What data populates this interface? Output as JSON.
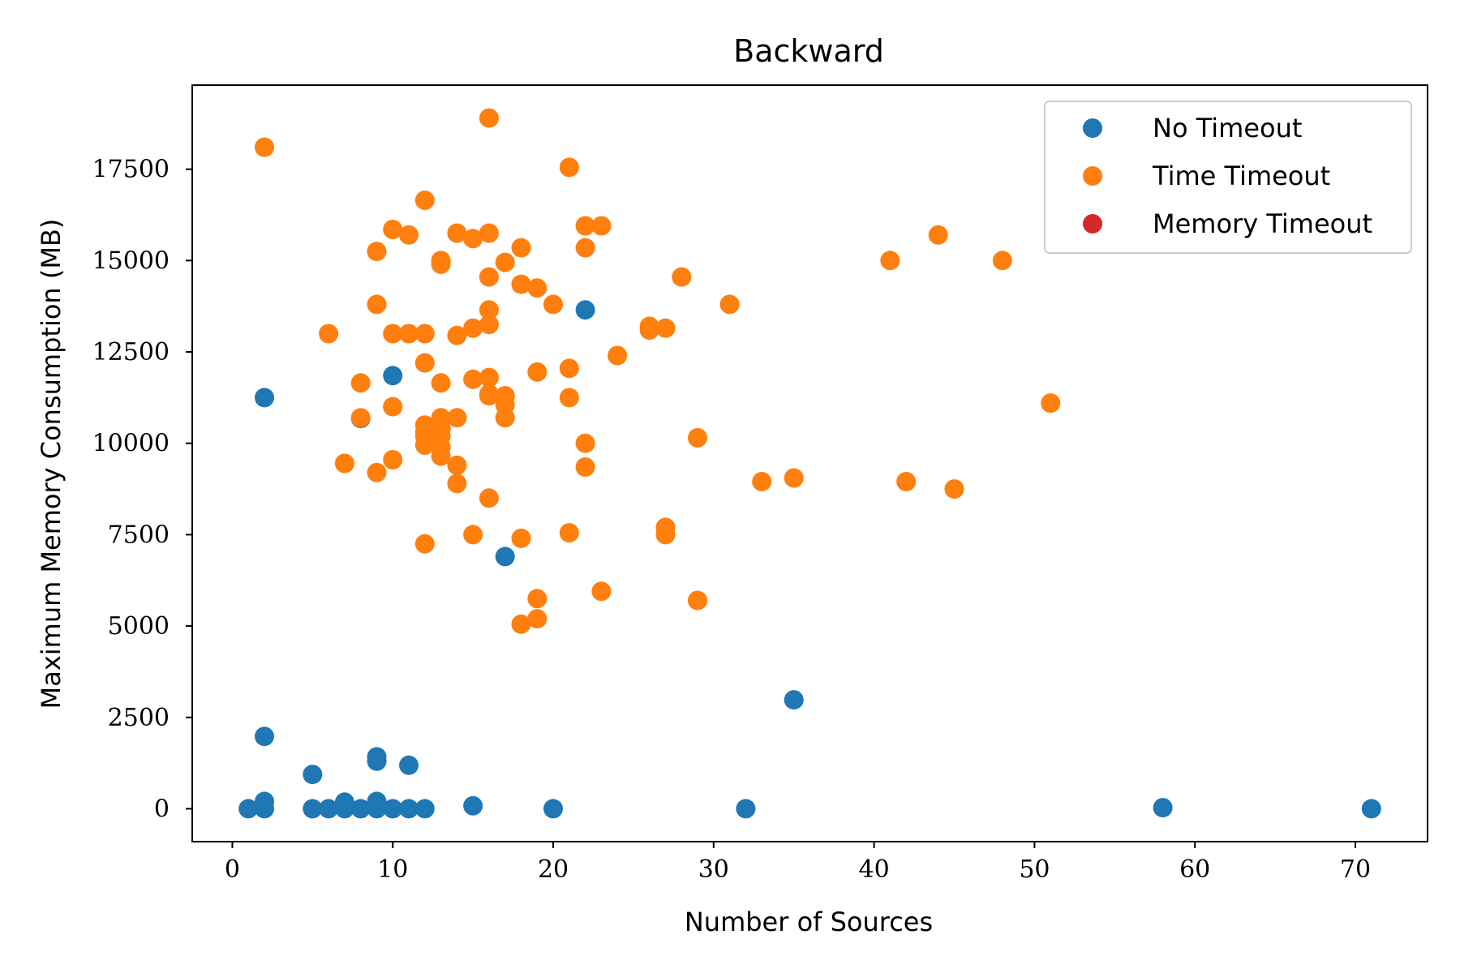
{
  "chart_data": {
    "type": "scatter",
    "title": "Backward",
    "xlabel": "Number of Sources",
    "ylabel": "Maximum Memory Consumption (MB)",
    "xlim": [
      -2.5,
      74.5
    ],
    "ylim": [
      -900,
      19800
    ],
    "xticks": [
      "0",
      "10",
      "20",
      "30",
      "40",
      "50",
      "60",
      "70"
    ],
    "yticks": [
      "0",
      "2500",
      "5000",
      "7500",
      "10000",
      "12500",
      "15000",
      "17500"
    ],
    "legend_position": "top-right",
    "grid": false,
    "series": [
      {
        "name": "No Timeout",
        "color": "#1f77b4",
        "x": [
          1,
          2,
          2,
          2,
          2,
          5,
          5,
          6,
          7,
          7,
          8,
          8,
          9,
          9,
          9,
          9,
          10,
          10,
          11,
          11,
          12,
          15,
          17,
          20,
          22,
          32,
          35,
          58,
          71
        ],
        "y": [
          0,
          0,
          200,
          1980,
          11250,
          0,
          940,
          0,
          0,
          180,
          0,
          10680,
          0,
          200,
          1300,
          1420,
          0,
          11850,
          0,
          1190,
          0,
          80,
          6900,
          0,
          13650,
          0,
          2980,
          30,
          0
        ]
      },
      {
        "name": "Time Timeout",
        "color": "#ff7f0e",
        "x": [
          2,
          6,
          7,
          8,
          8,
          9,
          9,
          9,
          10,
          10,
          10,
          10,
          11,
          11,
          12,
          12,
          12,
          12,
          12,
          12,
          12,
          12,
          13,
          13,
          13,
          13,
          13,
          13,
          13,
          13,
          14,
          14,
          14,
          14,
          14,
          15,
          15,
          15,
          15,
          16,
          16,
          16,
          16,
          16,
          16,
          16,
          16,
          16,
          17,
          17,
          17,
          17,
          18,
          18,
          18,
          18,
          19,
          19,
          19,
          19,
          20,
          21,
          21,
          21,
          21,
          22,
          22,
          22,
          22,
          23,
          23,
          24,
          26,
          26,
          27,
          27,
          27,
          28,
          29,
          29,
          31,
          33,
          35,
          41,
          42,
          44,
          45,
          48,
          51
        ],
        "y": [
          18100,
          13000,
          9450,
          10700,
          11650,
          9200,
          13800,
          15250,
          9550,
          11000,
          13000,
          15850,
          13000,
          15700,
          7250,
          9950,
          10200,
          10500,
          12200,
          13000,
          16650,
          10300,
          9650,
          9900,
          10200,
          10400,
          10700,
          11650,
          14900,
          15000,
          8900,
          9400,
          10700,
          12950,
          15750,
          7500,
          11750,
          13150,
          15600,
          8500,
          11300,
          11800,
          13250,
          13650,
          14550,
          15750,
          18900,
          11350,
          10700,
          11050,
          11300,
          14950,
          5050,
          7400,
          14350,
          15350,
          5200,
          5750,
          11950,
          14250,
          13800,
          7550,
          11250,
          12050,
          17550,
          9350,
          10000,
          15350,
          15950,
          5950,
          15950,
          12400,
          13100,
          13200,
          7500,
          7700,
          13150,
          14550,
          5700,
          10150,
          13800,
          8950,
          9050,
          15000,
          8950,
          15700,
          8750,
          15000,
          11100
        ]
      },
      {
        "name": "Memory Timeout",
        "color": "#d62728",
        "x": [],
        "y": []
      }
    ]
  }
}
